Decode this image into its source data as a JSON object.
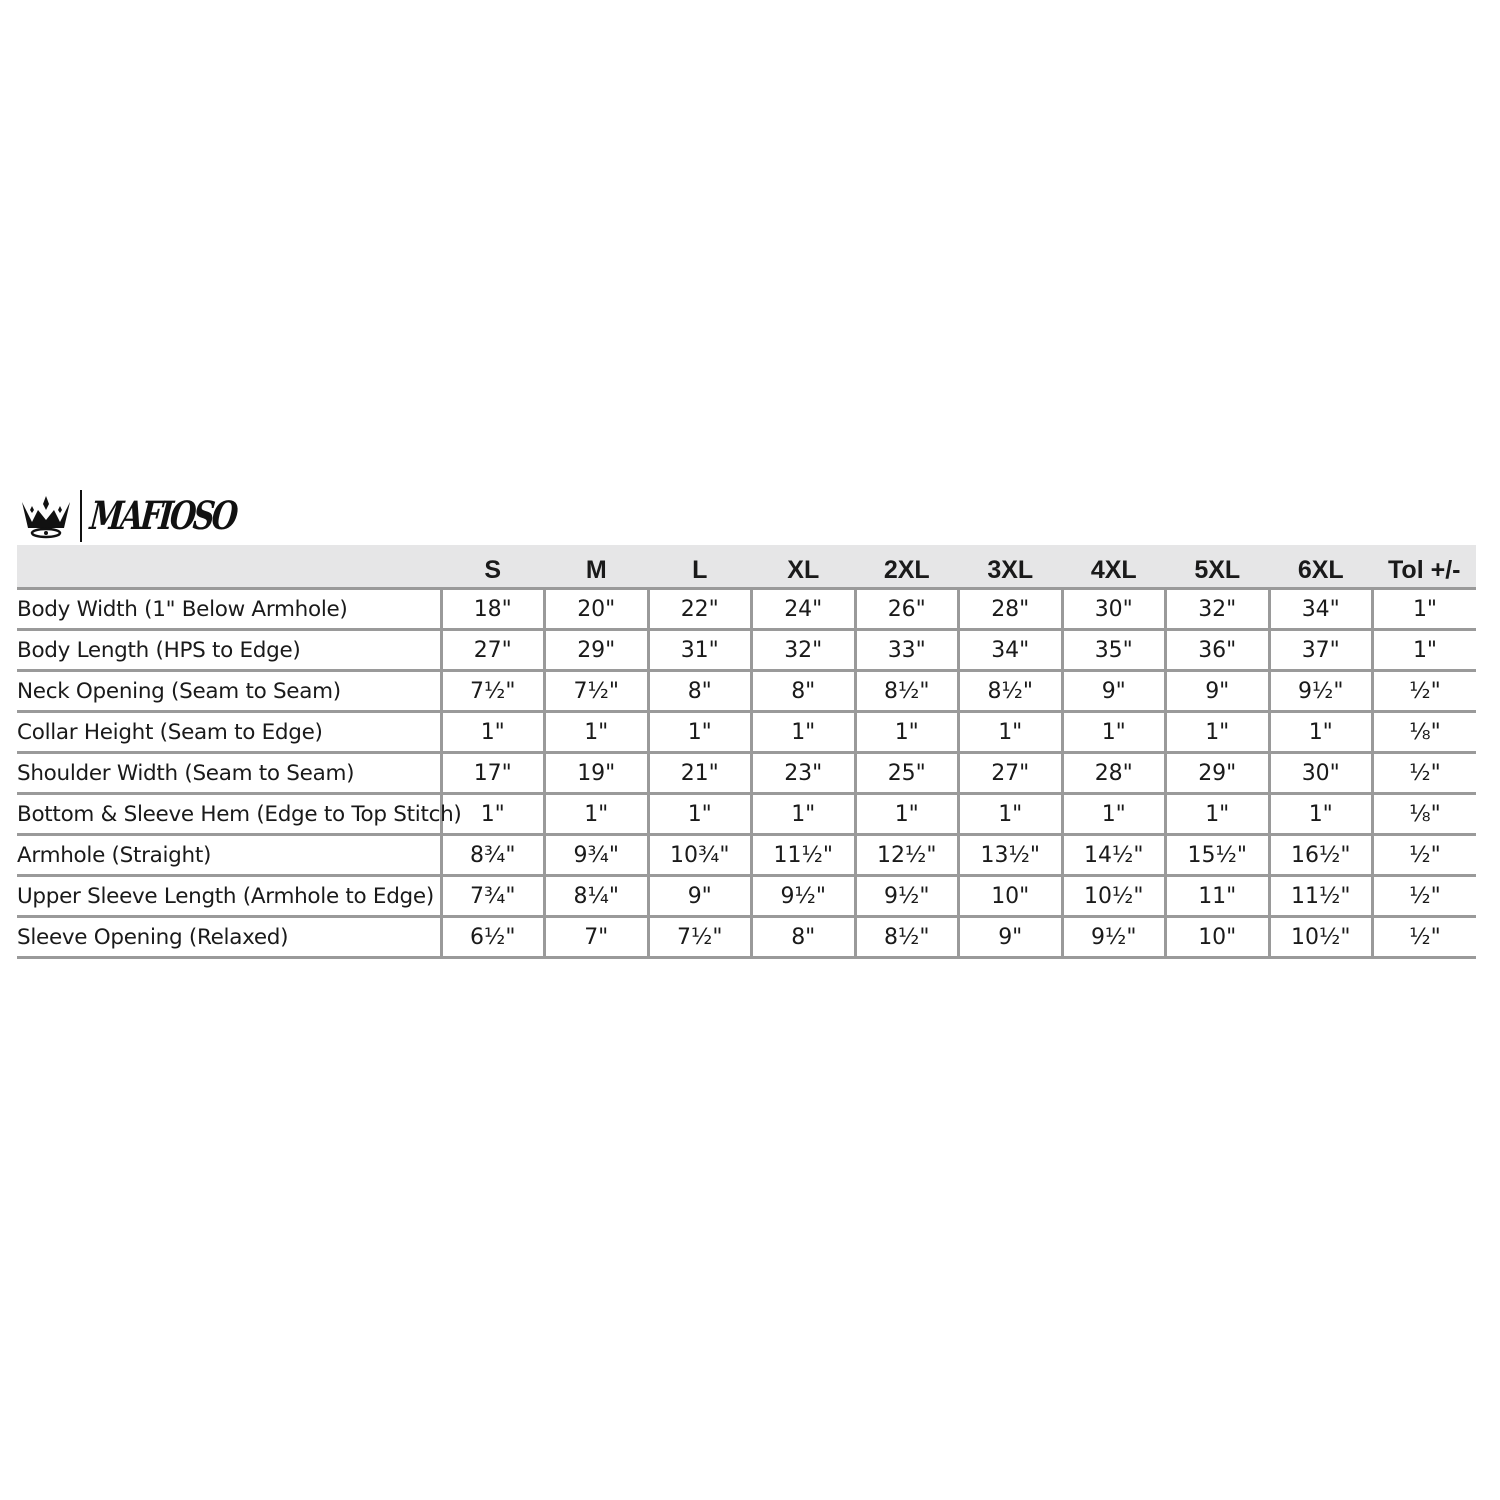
{
  "brand": {
    "logo_text": "MAFIOSO",
    "icon": "crown-icon"
  },
  "table": {
    "headers": [
      "",
      "S",
      "M",
      "L",
      "XL",
      "2XL",
      "3XL",
      "4XL",
      "5XL",
      "6XL",
      "Tol +/-"
    ],
    "rows": [
      {
        "label": "Body Width (1\" Below Armhole)",
        "values": [
          "18\"",
          "20\"",
          "22\"",
          "24\"",
          "26\"",
          "28\"",
          "30\"",
          "32\"",
          "34\"",
          "1\""
        ]
      },
      {
        "label": "Body Length (HPS to Edge)",
        "values": [
          "27\"",
          "29\"",
          "31\"",
          "32\"",
          "33\"",
          "34\"",
          "35\"",
          "36\"",
          "37\"",
          "1\""
        ]
      },
      {
        "label": "Neck Opening (Seam to Seam)",
        "values": [
          "7½\"",
          "7½\"",
          "8\"",
          "8\"",
          "8½\"",
          "8½\"",
          "9\"",
          "9\"",
          "9½\"",
          "½\""
        ]
      },
      {
        "label": "Collar Height (Seam to Edge)",
        "values": [
          "1\"",
          "1\"",
          "1\"",
          "1\"",
          "1\"",
          "1\"",
          "1\"",
          "1\"",
          "1\"",
          "⅛\""
        ]
      },
      {
        "label": "Shoulder Width (Seam to Seam)",
        "values": [
          "17\"",
          "19\"",
          "21\"",
          "23\"",
          "25\"",
          "27\"",
          "28\"",
          "29\"",
          "30\"",
          "½\""
        ]
      },
      {
        "label": "Bottom & Sleeve Hem (Edge to Top Stitch)",
        "values": [
          "1\"",
          "1\"",
          "1\"",
          "1\"",
          "1\"",
          "1\"",
          "1\"",
          "1\"",
          "1\"",
          "⅛\""
        ]
      },
      {
        "label": "Armhole (Straight)",
        "values": [
          "8¾\"",
          "9¾\"",
          "10¾\"",
          "11½\"",
          "12½\"",
          "13½\"",
          "14½\"",
          "15½\"",
          "16½\"",
          "½\""
        ]
      },
      {
        "label": "Upper Sleeve Length (Armhole to Edge)",
        "values": [
          "7¾\"",
          "8¼\"",
          "9\"",
          "9½\"",
          "9½\"",
          "10\"",
          "10½\"",
          "11\"",
          "11½\"",
          "½\""
        ]
      },
      {
        "label": "Sleeve Opening (Relaxed)",
        "values": [
          "6½\"",
          "7\"",
          "7½\"",
          "8\"",
          "8½\"",
          "9\"",
          "9½\"",
          "10\"",
          "10½\"",
          "½\""
        ]
      }
    ]
  }
}
